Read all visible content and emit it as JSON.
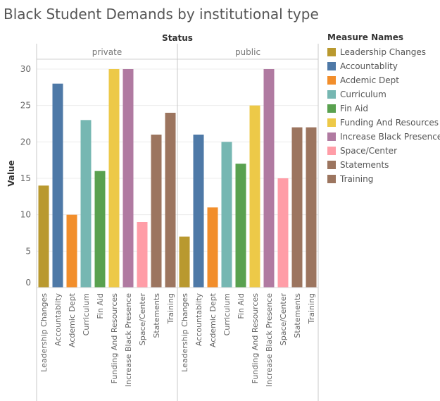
{
  "title": "Black Student Demands by institutional type",
  "legend": {
    "title": "Measure Names",
    "items": [
      {
        "label": "Leadership Changes",
        "color": "#b9992f"
      },
      {
        "label": "Accountablity",
        "color": "#4e79a7"
      },
      {
        "label": "Acdemic Dept",
        "color": "#f28e2b"
      },
      {
        "label": "Curriculum",
        "color": "#76b7b2"
      },
      {
        "label": "Fin Aid",
        "color": "#59a14f"
      },
      {
        "label": "Funding And Resources",
        "color": "#edc948"
      },
      {
        "label": "Increase Black Presence",
        "color": "#b07aa1"
      },
      {
        "label": "Space/Center",
        "color": "#ff9da7"
      },
      {
        "label": "Statements",
        "color": "#9c755f"
      },
      {
        "label": "Training",
        "color": "#9c755f"
      }
    ]
  },
  "chart_data": {
    "type": "bar",
    "title": "Black Student Demands by institutional type",
    "facet_title": "Status",
    "xlabel": "",
    "ylabel": "Value",
    "ylim": [
      0,
      30
    ],
    "yticks": [
      0,
      5,
      10,
      15,
      20,
      25,
      30
    ],
    "grid": true,
    "legend_position": "right",
    "categories": [
      "Leadership Changes",
      "Accountablity",
      "Acdemic Dept",
      "Curriculum",
      "Fin Aid",
      "Funding And Resources",
      "Increase Black Presence",
      "Space/Center",
      "Statements",
      "Training"
    ],
    "panels": [
      {
        "name": "private",
        "values": [
          14,
          28,
          10,
          23,
          16,
          30,
          30,
          9,
          21,
          24
        ]
      },
      {
        "name": "public",
        "values": [
          7,
          21,
          11,
          20,
          17,
          25,
          30,
          15,
          22,
          22
        ]
      }
    ]
  }
}
